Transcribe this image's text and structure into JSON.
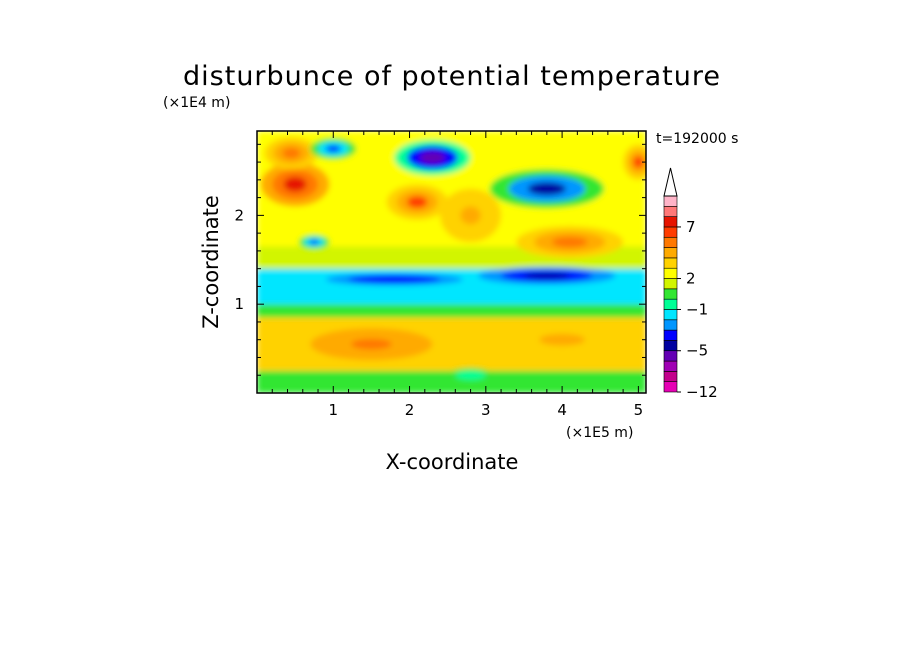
{
  "chart_data": {
    "type": "heatmap",
    "title": "disturbunce of potential temperature",
    "xlabel": "X-coordinate",
    "ylabel": "Z-coordinate",
    "x_unit": "(×1E5 m)",
    "y_unit": "(×1E4 m)",
    "time_label": "t=192000 s",
    "xlim": [
      0,
      5.1
    ],
    "ylim": [
      0,
      2.95
    ],
    "x_ticks": [
      "1",
      "2",
      "3",
      "4",
      "5"
    ],
    "y_ticks": [
      "1",
      "2"
    ],
    "colorbar": {
      "levels": [
        -12,
        -10,
        -8,
        -6,
        -5,
        -4,
        -3,
        -2,
        -1,
        0,
        1,
        2,
        3,
        4,
        5,
        6,
        7,
        8,
        9,
        10
      ],
      "tick_labels": [
        "7",
        "2",
        "−1",
        "−5",
        "−12"
      ],
      "colors": [
        "#e600b4",
        "#c3008c",
        "#a000b4",
        "#6400b4",
        "#0000a0",
        "#0000ff",
        "#0096ff",
        "#00e6ff",
        "#00ff96",
        "#32e632",
        "#d2f500",
        "#ffff00",
        "#ffd200",
        "#ffaa00",
        "#ff7800",
        "#ff3c00",
        "#e61400",
        "#ff7878",
        "#ffb4c8"
      ],
      "extend_top": true
    },
    "layers": [
      {
        "x_range": [
          0.0,
          5.1
        ],
        "z_range": [
          0.0,
          0.25
        ],
        "value": 0.5
      },
      {
        "x_range": [
          0.0,
          5.1
        ],
        "z_range": [
          0.25,
          0.85
        ],
        "value": 3.5
      },
      {
        "x_range": [
          0.0,
          5.1
        ],
        "z_range": [
          0.85,
          1.0
        ],
        "value": 0.5
      },
      {
        "x_range": [
          0.0,
          5.1
        ],
        "z_range": [
          1.0,
          1.4
        ],
        "value": -1.5
      },
      {
        "x_range": [
          0.0,
          5.1
        ],
        "z_range": [
          1.4,
          1.65
        ],
        "value": 1.0
      },
      {
        "x_range": [
          0.0,
          5.1
        ],
        "z_range": [
          1.65,
          2.95
        ],
        "value": 2.5
      }
    ],
    "features": [
      {
        "x": 0.5,
        "z": 2.35,
        "value": 7,
        "rx": 0.45,
        "rz": 0.25
      },
      {
        "x": 2.1,
        "z": 2.15,
        "value": 6,
        "rx": 0.4,
        "rz": 0.2
      },
      {
        "x": 0.45,
        "z": 2.7,
        "value": 5,
        "rx": 0.35,
        "rz": 0.18
      },
      {
        "x": 5.0,
        "z": 2.6,
        "value": 6,
        "rx": 0.2,
        "rz": 0.2
      },
      {
        "x": 3.8,
        "z": 2.3,
        "value": -5,
        "rx": 0.75,
        "rz": 0.22
      },
      {
        "x": 2.3,
        "z": 2.65,
        "value": -6,
        "rx": 0.5,
        "rz": 0.2
      },
      {
        "x": 1.0,
        "z": 2.75,
        "value": -4,
        "rx": 0.3,
        "rz": 0.12
      },
      {
        "x": 0.75,
        "z": 1.7,
        "value": -4,
        "rx": 0.2,
        "rz": 0.08
      },
      {
        "x": 1.8,
        "z": 1.28,
        "value": -4,
        "rx": 0.9,
        "rz": 0.07
      },
      {
        "x": 3.8,
        "z": 1.32,
        "value": -5,
        "rx": 0.9,
        "rz": 0.1
      },
      {
        "x": 4.1,
        "z": 1.7,
        "value": 5,
        "rx": 0.7,
        "rz": 0.18
      },
      {
        "x": 2.8,
        "z": 2.0,
        "value": 4,
        "rx": 0.4,
        "rz": 0.3
      },
      {
        "x": 1.5,
        "z": 0.55,
        "value": 5,
        "rx": 0.8,
        "rz": 0.18
      },
      {
        "x": 4.0,
        "z": 0.6,
        "value": 4,
        "rx": 0.9,
        "rz": 0.2
      },
      {
        "x": 2.8,
        "z": 0.2,
        "value": -1,
        "rx": 0.3,
        "rz": 0.08
      }
    ]
  }
}
